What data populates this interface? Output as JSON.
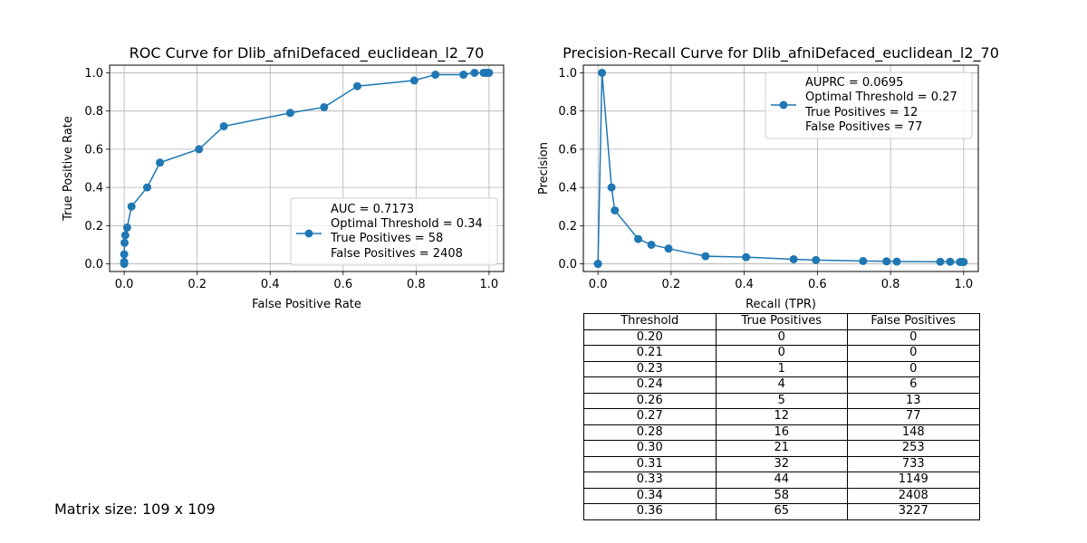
{
  "roc": {
    "title": "ROC Curve for Dlib_afniDefaced_euclidean_l2_70",
    "xlabel": "False Positive Rate",
    "ylabel": "True Positive Rate",
    "legend": [
      "AUC = 0.7173",
      "Optimal Threshold = 0.34",
      "True Positives = 58",
      "False Positives = 2408"
    ]
  },
  "pr": {
    "title": "Precision-Recall Curve for Dlib_afniDefaced_euclidean_l2_70",
    "xlabel": "Recall (TPR)",
    "ylabel": "Precision",
    "legend": [
      "AUPRC = 0.0695",
      "Optimal Threshold = 0.27",
      "True Positives = 12",
      "False Positives = 77"
    ]
  },
  "table": {
    "headers": [
      "Threshold",
      "True Positives",
      "False Positives"
    ],
    "rows": [
      [
        "0.20",
        "0",
        "0"
      ],
      [
        "0.21",
        "0",
        "0"
      ],
      [
        "0.23",
        "1",
        "0"
      ],
      [
        "0.24",
        "4",
        "6"
      ],
      [
        "0.26",
        "5",
        "13"
      ],
      [
        "0.27",
        "12",
        "77"
      ],
      [
        "0.28",
        "16",
        "148"
      ],
      [
        "0.30",
        "21",
        "253"
      ],
      [
        "0.31",
        "32",
        "733"
      ],
      [
        "0.33",
        "44",
        "1149"
      ],
      [
        "0.34",
        "58",
        "2408"
      ],
      [
        "0.36",
        "65",
        "3227"
      ]
    ]
  },
  "footer": {
    "matrix_size": "Matrix size: 109 x 109"
  },
  "chart_data": [
    {
      "type": "line",
      "title": "ROC Curve for Dlib_afniDefaced_euclidean_l2_70",
      "xlabel": "False Positive Rate",
      "ylabel": "True Positive Rate",
      "xlim": [
        -0.04,
        1.04
      ],
      "ylim": [
        -0.04,
        1.04
      ],
      "xticks": [
        "0.0",
        "0.2",
        "0.4",
        "0.6",
        "0.8",
        "1.0"
      ],
      "yticks": [
        "0.0",
        "0.2",
        "0.4",
        "0.6",
        "0.8",
        "1.0"
      ],
      "grid": true,
      "legend_position": "lower-right",
      "color": "#1f77b4",
      "series": [
        {
          "name": "AUC = 0.7173",
          "x": [
            0.0,
            0.0,
            0.0,
            0.001,
            0.003,
            0.008,
            0.02,
            0.063,
            0.098,
            0.205,
            0.273,
            0.455,
            0.548,
            0.639,
            0.795,
            0.853,
            0.93,
            0.96,
            0.985,
            0.992,
            0.996,
            0.998,
            1.0
          ],
          "y": [
            0.0,
            0.01,
            0.05,
            0.11,
            0.15,
            0.19,
            0.3,
            0.4,
            0.53,
            0.6,
            0.72,
            0.79,
            0.82,
            0.93,
            0.96,
            0.99,
            0.99,
            1.0,
            1.0,
            1.0,
            1.0,
            1.0,
            1.0
          ]
        }
      ]
    },
    {
      "type": "line",
      "title": "Precision-Recall Curve for Dlib_afniDefaced_euclidean_l2_70",
      "xlabel": "Recall (TPR)",
      "ylabel": "Precision",
      "xlim": [
        -0.04,
        1.04
      ],
      "ylim": [
        -0.04,
        1.04
      ],
      "xticks": [
        "0.0",
        "0.2",
        "0.4",
        "0.6",
        "0.8",
        "1.0"
      ],
      "yticks": [
        "0.0",
        "0.2",
        "0.4",
        "0.6",
        "0.8",
        "1.0"
      ],
      "grid": true,
      "legend_position": "upper-right",
      "color": "#1f77b4",
      "series": [
        {
          "name": "AUPRC = 0.0695",
          "x": [
            0.0,
            0.0,
            0.011,
            0.037,
            0.046,
            0.11,
            0.146,
            0.193,
            0.294,
            0.405,
            0.535,
            0.596,
            0.725,
            0.789,
            0.817,
            0.936,
            0.963,
            0.99,
            0.995,
            1.0
          ],
          "y": [
            0.0,
            0.0,
            1.0,
            0.4,
            0.28,
            0.13,
            0.1,
            0.08,
            0.04,
            0.035,
            0.024,
            0.02,
            0.015,
            0.013,
            0.012,
            0.011,
            0.011,
            0.01,
            0.01,
            0.01
          ]
        }
      ]
    }
  ]
}
